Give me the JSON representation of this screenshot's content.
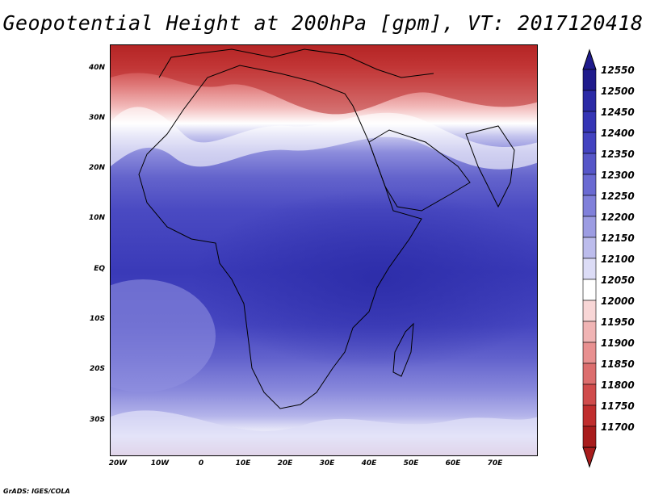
{
  "title": "Geopotential Height at 200hPa [gpm], VT: 2017120418",
  "credit": "GrADS: IGES/COLA",
  "axes": {
    "lat_labels": [
      "40N",
      "30N",
      "20N",
      "10N",
      "EQ",
      "10S",
      "20S",
      "30S"
    ],
    "lat_values": [
      40,
      30,
      20,
      10,
      0,
      -10,
      -20,
      -30
    ],
    "lon_labels": [
      "20W",
      "10W",
      "0",
      "10E",
      "20E",
      "30E",
      "40E",
      "50E",
      "60E",
      "70E"
    ],
    "lon_values": [
      -20,
      -10,
      0,
      10,
      20,
      30,
      40,
      50,
      60,
      70
    ],
    "lon_range": [
      -22,
      80
    ],
    "lat_range": [
      -37,
      45
    ]
  },
  "colorbar": {
    "labels": [
      "12550",
      "12500",
      "12450",
      "12400",
      "12350",
      "12300",
      "12250",
      "12200",
      "12150",
      "12100",
      "12050",
      "12000",
      "11950",
      "11900",
      "11850",
      "11800",
      "11750",
      "11700"
    ],
    "colors": [
      "#1f1b8c",
      "#2b2aa6",
      "#3535b5",
      "#4343c0",
      "#5656c8",
      "#6a6ad2",
      "#8080da",
      "#9c9ce2",
      "#bcbcec",
      "#dcdcf6",
      "#ffffff",
      "#f8d6d6",
      "#f0b4b4",
      "#e89090",
      "#dc6e6e",
      "#d04c4c",
      "#c02e2e",
      "#a81c1c"
    ]
  }
}
